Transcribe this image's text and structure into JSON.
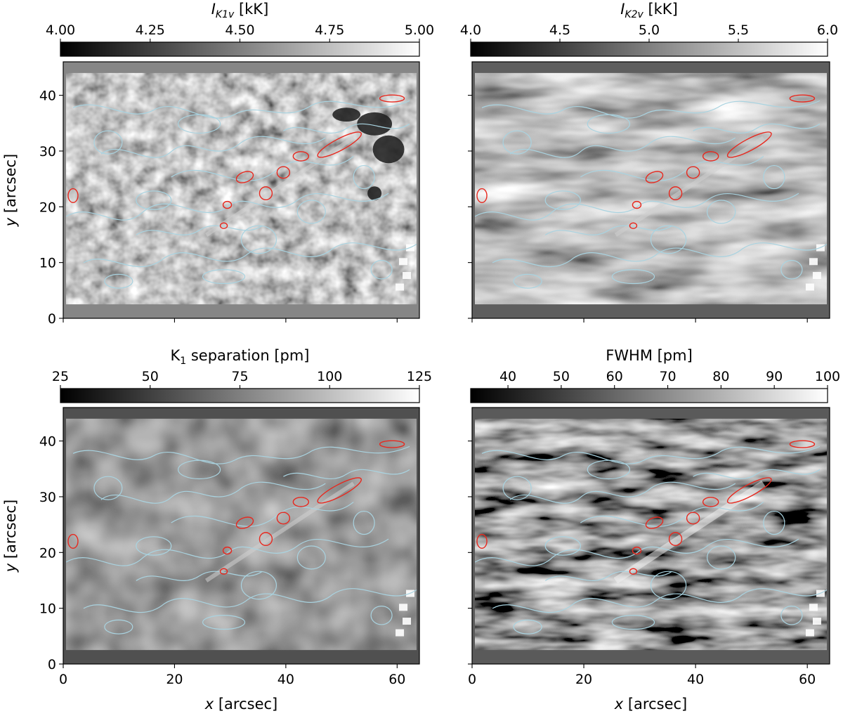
{
  "chart_data": [
    {
      "type": "heatmap",
      "panel": "top-left",
      "colorbar": {
        "label_main": "I",
        "label_sub": "K1v",
        "label_unit": " [kK]",
        "ticks": [
          "4.00",
          "4.25",
          "4.50",
          "4.75",
          "5.00"
        ],
        "min": 4.0,
        "max": 5.0
      },
      "xlabel": "",
      "ylabel": "y [arcsec]",
      "xticks": [],
      "yticks": [
        "0",
        "10",
        "20",
        "30",
        "40"
      ],
      "xlim": [
        0,
        64
      ],
      "ylim": [
        0,
        46
      ],
      "fov_y": [
        2.5,
        44
      ],
      "fov_color": "#868686",
      "contours": {
        "lightblue": "#a9d3e0",
        "red": "#e8281e"
      }
    },
    {
      "type": "heatmap",
      "panel": "top-right",
      "colorbar": {
        "label_main": "I",
        "label_sub": "K2v",
        "label_unit": " [kK]",
        "ticks": [
          "4.0",
          "4.5",
          "5.0",
          "5.5",
          "6.0"
        ],
        "min": 4.0,
        "max": 6.0
      },
      "xlabel": "",
      "ylabel": "",
      "xticks": [],
      "yticks": [],
      "xlim": [
        0,
        64
      ],
      "ylim": [
        0,
        46
      ],
      "fov_y": [
        2.5,
        44
      ],
      "fov_color": "#5e5e5e",
      "contours": {
        "lightblue": "#a9d3e0",
        "red": "#e8281e"
      }
    },
    {
      "type": "heatmap",
      "panel": "bottom-left",
      "colorbar": {
        "label_main": "K",
        "label_sub": "1",
        "label_unit": " separation [pm]",
        "ticks": [
          "25",
          "50",
          "75",
          "100",
          "125"
        ],
        "min": 25,
        "max": 125
      },
      "xlabel": "x [arcsec]",
      "ylabel": "y [arcsec]",
      "xticks": [
        "0",
        "20",
        "40",
        "60"
      ],
      "yticks": [
        "0",
        "10",
        "20",
        "30",
        "40"
      ],
      "xlim": [
        0,
        64
      ],
      "ylim": [
        0,
        46
      ],
      "fov_y": [
        2.5,
        44
      ],
      "fov_color": "#505050",
      "contours": {
        "lightblue": "#a9d3e0",
        "red": "#e8281e"
      }
    },
    {
      "type": "heatmap",
      "panel": "bottom-right",
      "colorbar": {
        "label_main": "FWHM [pm]",
        "label_sub": "",
        "label_unit": "",
        "ticks": [
          "40",
          "50",
          "60",
          "70",
          "80",
          "90",
          "100"
        ],
        "min": 33,
        "max": 100
      },
      "xlabel": "x [arcsec]",
      "ylabel": "",
      "xticks": [
        "0",
        "20",
        "40",
        "60"
      ],
      "yticks": [],
      "xlim": [
        0,
        64
      ],
      "ylim": [
        0,
        46
      ],
      "fov_y": [
        2.5,
        44
      ],
      "fov_color": "#5a5a5a",
      "contours": {
        "lightblue": "#a9d3e0",
        "red": "#e8281e"
      }
    }
  ]
}
